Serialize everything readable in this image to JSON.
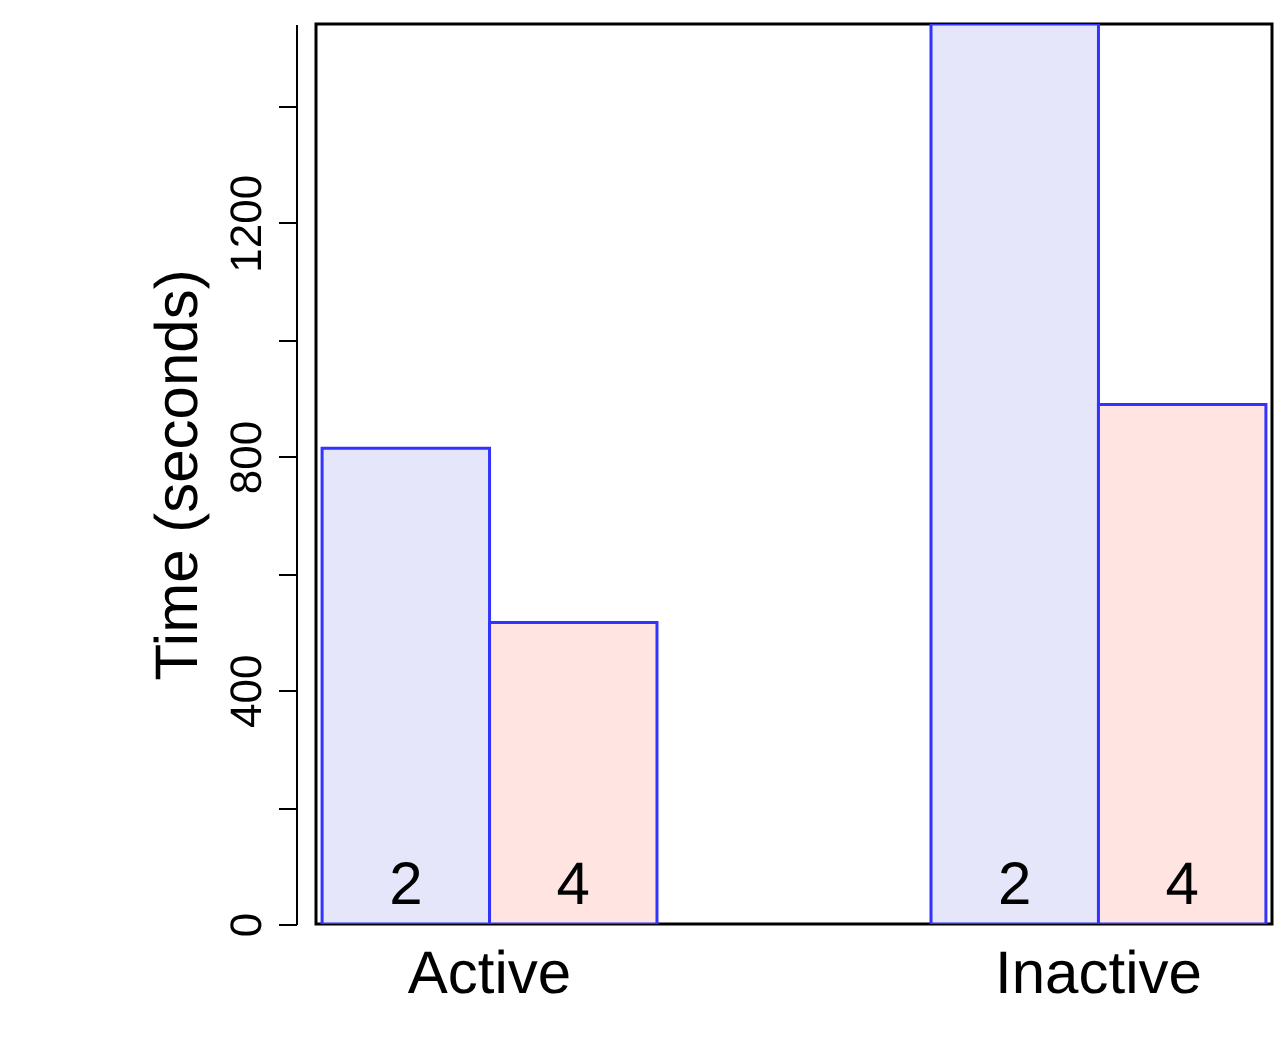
{
  "chart_data": {
    "type": "bar",
    "ylabel": "Time (seconds)",
    "categories": [
      "Active",
      "Inactive"
    ],
    "series": [
      {
        "name": "2",
        "color": "#e6e6fa",
        "values": [
          814,
          1540
        ]
      },
      {
        "name": "4",
        "color": "#ffe4e1",
        "values": [
          516,
          889
        ]
      }
    ],
    "ylim": [
      0,
      1540
    ],
    "yticks": [
      0,
      {
        "value": 200,
        "label": null
      },
      400,
      {
        "value": 600,
        "label": null
      },
      800,
      {
        "value": 1000,
        "label": null
      },
      1200,
      {
        "value": 1400,
        "label": null
      }
    ],
    "grid": false
  }
}
